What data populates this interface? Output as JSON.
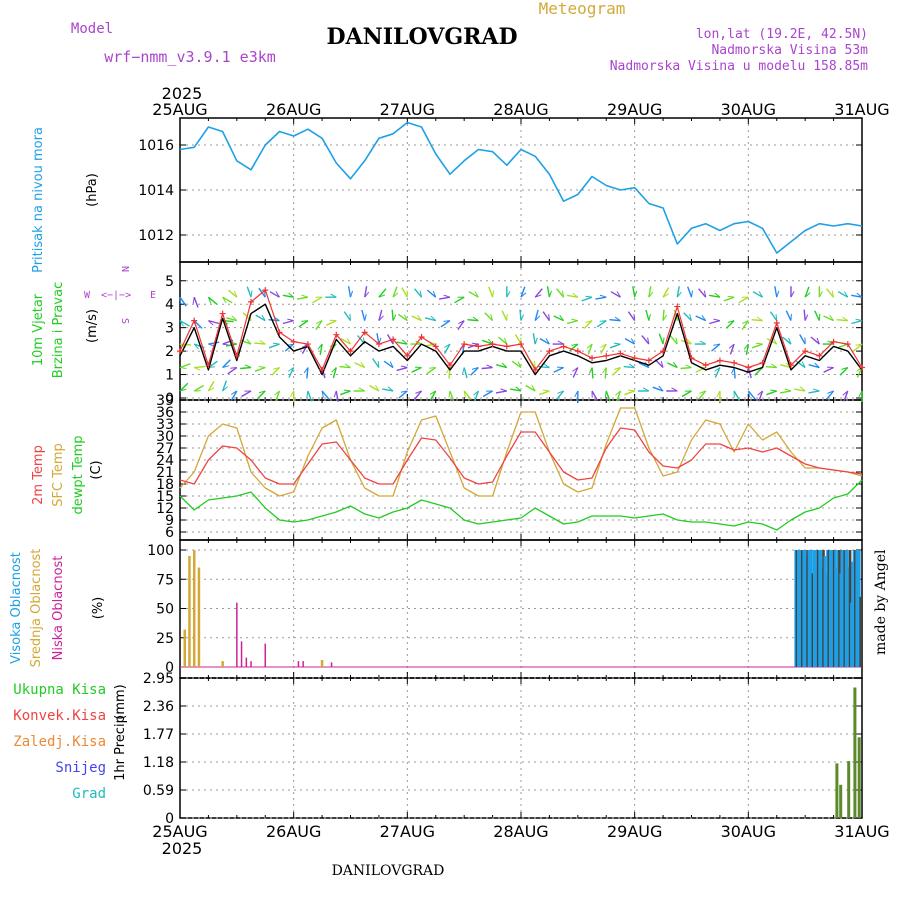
{
  "header": {
    "title": "DANILOVGRAD",
    "meteogram_label": "Meteogram",
    "model_label": "Model",
    "model_name": "wrf−nmm_v3.9.1  e3km",
    "lonlat": "lon,lat (19.2E, 42.5N)",
    "elevation": "Nadmorska Visina 53m",
    "model_elevation": "Nadmorska Visina u modelu 158.85m",
    "year_top": "2025",
    "year_bottom": "2025"
  },
  "footer": {
    "station": "DANILOVGRAD",
    "credit": "made by Angel"
  },
  "colors": {
    "pressure": "#1ea0e6",
    "barb_green": "#22cc22",
    "wind_black": "#000000",
    "wind_red": "#ee3333",
    "temp2m": "#ee4444",
    "sfc": "#d4a838",
    "dewpt": "#22cc22",
    "cloud_high": "#1ea0e6",
    "cloud_mid": "#d4a838",
    "cloud_low": "#cc2299",
    "precip": "#5a8a2a",
    "label_green": "#22cc22",
    "label_red": "#ee4444",
    "label_orange": "#ee8833",
    "label_blue": "#4444ee",
    "label_teal": "#22bbbb",
    "label_purple": "#aa44cc",
    "label_gold": "#d4a838"
  },
  "legend_compass": {
    "n": "N",
    "s": "S",
    "w": "W",
    "e": "E",
    "arrows": "<−|−>"
  },
  "chart_data": [
    {
      "id": "pressure",
      "type": "line",
      "ylabel_1": "Pritisak na nivou mora",
      "ylabel_unit": "(hPa)",
      "x_days": [
        "25AUG",
        "26AUG",
        "27AUG",
        "28AUG",
        "29AUG",
        "30AUG",
        "31AUG"
      ],
      "ylim": [
        1010.8,
        1017.2
      ],
      "yticks": [
        "1012",
        "1014",
        "1016"
      ],
      "ytick_values": [
        1012,
        1014,
        1016
      ],
      "x_hours": [
        0,
        3,
        6,
        9,
        12,
        15,
        18,
        21,
        24,
        27,
        30,
        33,
        36,
        39,
        42,
        45,
        48,
        51,
        54,
        57,
        60,
        63,
        66,
        69,
        72,
        75,
        78,
        81,
        84,
        87,
        90,
        93,
        96,
        99,
        102,
        105,
        108,
        111,
        114,
        117,
        120,
        123,
        126,
        129,
        132,
        135,
        138,
        141,
        144
      ],
      "series": [
        {
          "name": "MSLP",
          "values": [
            1015.8,
            1015.9,
            1016.8,
            1016.6,
            1015.3,
            1014.9,
            1016.0,
            1016.6,
            1016.4,
            1016.7,
            1016.3,
            1015.2,
            1014.5,
            1015.3,
            1016.3,
            1016.5,
            1017.0,
            1016.8,
            1015.6,
            1014.7,
            1015.3,
            1015.8,
            1015.7,
            1015.1,
            1015.8,
            1015.5,
            1014.7,
            1013.5,
            1013.8,
            1014.6,
            1014.2,
            1014.0,
            1014.1,
            1013.4,
            1013.2,
            1011.6,
            1012.3,
            1012.5,
            1012.2,
            1012.5,
            1012.6,
            1012.3,
            1011.2,
            1011.7,
            1012.2,
            1012.5,
            1012.4,
            1012.5,
            1012.4
          ]
        }
      ]
    },
    {
      "id": "wind",
      "type": "line",
      "ylabel_1": "10m Vjetar",
      "ylabel_2": "Brzina i Pravac",
      "ylabel_unit": "(m/s)",
      "ylim": [
        0,
        5.8
      ],
      "yticks": [
        "0",
        "1",
        "2",
        "3",
        "4",
        "5"
      ],
      "ytick_values": [
        0,
        1,
        2,
        3,
        4,
        5
      ],
      "x_hours": [
        0,
        3,
        6,
        9,
        12,
        15,
        18,
        21,
        24,
        27,
        30,
        33,
        36,
        39,
        42,
        45,
        48,
        51,
        54,
        57,
        60,
        63,
        66,
        69,
        72,
        75,
        78,
        81,
        84,
        87,
        90,
        93,
        96,
        99,
        102,
        105,
        108,
        111,
        114,
        117,
        120,
        123,
        126,
        129,
        132,
        135,
        138,
        141,
        144
      ],
      "series": [
        {
          "name": "speed",
          "values": [
            1.8,
            3.0,
            1.2,
            3.4,
            1.6,
            3.6,
            4.0,
            2.6,
            2.0,
            2.2,
            1.0,
            2.5,
            1.8,
            2.4,
            2.0,
            2.2,
            1.6,
            2.3,
            2.0,
            1.2,
            2.0,
            2.0,
            2.2,
            2.0,
            2.0,
            1.0,
            1.8,
            2.0,
            1.8,
            1.5,
            1.6,
            1.8,
            1.6,
            1.4,
            1.8,
            3.6,
            1.5,
            1.2,
            1.4,
            1.3,
            1.1,
            1.3,
            3.0,
            1.2,
            1.8,
            1.6,
            2.2,
            2.0,
            1.2
          ]
        },
        {
          "name": "gust",
          "values": [
            2.0,
            3.3,
            1.4,
            3.6,
            1.8,
            4.1,
            4.6,
            2.8,
            2.4,
            2.3,
            1.2,
            2.7,
            2.0,
            2.8,
            2.3,
            2.5,
            1.8,
            2.6,
            2.2,
            1.4,
            2.3,
            2.2,
            2.3,
            2.2,
            2.3,
            1.2,
            2.0,
            2.2,
            2.0,
            1.7,
            1.8,
            1.9,
            1.7,
            1.6,
            2.0,
            3.9,
            1.7,
            1.4,
            1.6,
            1.5,
            1.3,
            1.5,
            3.2,
            1.4,
            2.0,
            1.8,
            2.4,
            2.3,
            1.3
          ]
        }
      ],
      "barbs_direction_deg": [
        45,
        60,
        30,
        20,
        210,
        240,
        225,
        200,
        180,
        160,
        140,
        170,
        250,
        270,
        300,
        280,
        230,
        220,
        210,
        160,
        140,
        200,
        240,
        260,
        280,
        300,
        250,
        220,
        180,
        150,
        160,
        200,
        250,
        270,
        290,
        270,
        240,
        220,
        180,
        150,
        140,
        200,
        250,
        260,
        280,
        260,
        220,
        200,
        180
      ]
    },
    {
      "id": "temperature",
      "type": "line",
      "ylabel_1": "2m Temp",
      "ylabel_2": "SFC Temp",
      "ylabel_3": "dewpt Temp",
      "ylabel_unit": "(C)",
      "ylim": [
        4.5,
        39
      ],
      "yticks": [
        "6",
        "9",
        "12",
        "15",
        "18",
        "21",
        "24",
        "27",
        "30",
        "33",
        "36",
        "39"
      ],
      "ytick_values": [
        6,
        9,
        12,
        15,
        18,
        21,
        24,
        27,
        30,
        33,
        36,
        39
      ],
      "x_hours": [
        0,
        3,
        6,
        9,
        12,
        15,
        18,
        21,
        24,
        27,
        30,
        33,
        36,
        39,
        42,
        45,
        48,
        51,
        54,
        57,
        60,
        63,
        66,
        69,
        72,
        75,
        78,
        81,
        84,
        87,
        90,
        93,
        96,
        99,
        102,
        105,
        108,
        111,
        114,
        117,
        120,
        123,
        126,
        129,
        132,
        135,
        138,
        141,
        144
      ],
      "series": [
        {
          "name": "2m Temp",
          "values": [
            19,
            18,
            24,
            27.5,
            27,
            24,
            19.5,
            18,
            18,
            23,
            28,
            28.5,
            24,
            19.5,
            18,
            18,
            24,
            29.5,
            29,
            24.5,
            19.5,
            18,
            18.5,
            25,
            31,
            31,
            26,
            21,
            19,
            19.5,
            27,
            32,
            31.5,
            26,
            22.5,
            22,
            24,
            28,
            28,
            26.5,
            27,
            26,
            27,
            25,
            23,
            22,
            21.5,
            21,
            20.5
          ]
        },
        {
          "name": "SFC Temp",
          "values": [
            17,
            21,
            30,
            33,
            32,
            21,
            17,
            15,
            16,
            25,
            32,
            34,
            24,
            17,
            15,
            15,
            26,
            34,
            35,
            26,
            17,
            15,
            15,
            26,
            36,
            36,
            26,
            18,
            16,
            17,
            28,
            37,
            37,
            27,
            20,
            21,
            29,
            34,
            33,
            26,
            33,
            29,
            31,
            26,
            22,
            22,
            21.5,
            21,
            20
          ]
        },
        {
          "name": "dewpt Temp",
          "values": [
            15,
            11.5,
            14,
            14.5,
            15,
            16,
            12,
            9,
            8.5,
            9,
            10,
            11,
            12.5,
            10.5,
            9.5,
            11,
            12,
            14,
            13,
            12,
            9,
            8,
            8.5,
            9,
            9.5,
            12,
            10,
            8,
            8.5,
            10,
            10,
            10,
            9.5,
            10,
            10.5,
            9,
            8.5,
            8.5,
            8,
            7.5,
            8.5,
            8,
            6.5,
            9,
            11,
            12,
            14.5,
            15.5,
            19
          ]
        }
      ]
    },
    {
      "id": "clouds",
      "type": "bar",
      "ylabel_1": "Visoka Oblacnost",
      "ylabel_2": "Srednja Oblacnost",
      "ylabel_3": "Niska Oblacnost",
      "ylabel_unit": "(%)",
      "ylim": [
        0,
        100
      ],
      "yticks": [
        "0",
        "25",
        "50",
        "75",
        "100"
      ],
      "ytick_values": [
        0,
        25,
        50,
        75,
        100
      ],
      "mid_bars": [
        [
          1,
          32
        ],
        [
          2,
          95
        ],
        [
          3,
          100
        ],
        [
          4,
          85
        ],
        [
          9,
          5
        ],
        [
          30,
          6
        ]
      ],
      "low_bars": [
        [
          12,
          55
        ],
        [
          13,
          22
        ],
        [
          14,
          8
        ],
        [
          15,
          5
        ],
        [
          18,
          20
        ],
        [
          25,
          5
        ],
        [
          26,
          5
        ],
        [
          32,
          4
        ]
      ],
      "high_bars_start_hour": 130,
      "high_bars_values": [
        100,
        100,
        100,
        100,
        100,
        100,
        100,
        100,
        95,
        100,
        100,
        100,
        100,
        80,
        100,
        100,
        100,
        100,
        100,
        100,
        85,
        100,
        95,
        80,
        100,
        100,
        100,
        90,
        100,
        100,
        100,
        85,
        100,
        100,
        80,
        100,
        100,
        100,
        100,
        100,
        85,
        100,
        55,
        90,
        100,
        100,
        100,
        100,
        100,
        60
      ]
    },
    {
      "id": "precip",
      "type": "bar",
      "ylabel_1": "1hr Precip",
      "ylabel_unit": "(mm)",
      "ylim": [
        0,
        2.95
      ],
      "yticks": [
        "0",
        "0.59",
        "1.18",
        "1.77",
        "2.36",
        "2.95"
      ],
      "ytick_values": [
        0,
        0.59,
        1.18,
        1.77,
        2.36,
        2.95
      ],
      "legend": [
        "Ukupna  Kisa",
        "Konvek.Kisa",
        "Zaledj.Kisa",
        "Snijeg",
        "Grad"
      ],
      "bars": [
        [
          138.7,
          1.15
        ],
        [
          139.5,
          0.7
        ],
        [
          141.2,
          1.2
        ],
        [
          142.5,
          2.75
        ],
        [
          143.4,
          1.7
        ]
      ]
    }
  ]
}
